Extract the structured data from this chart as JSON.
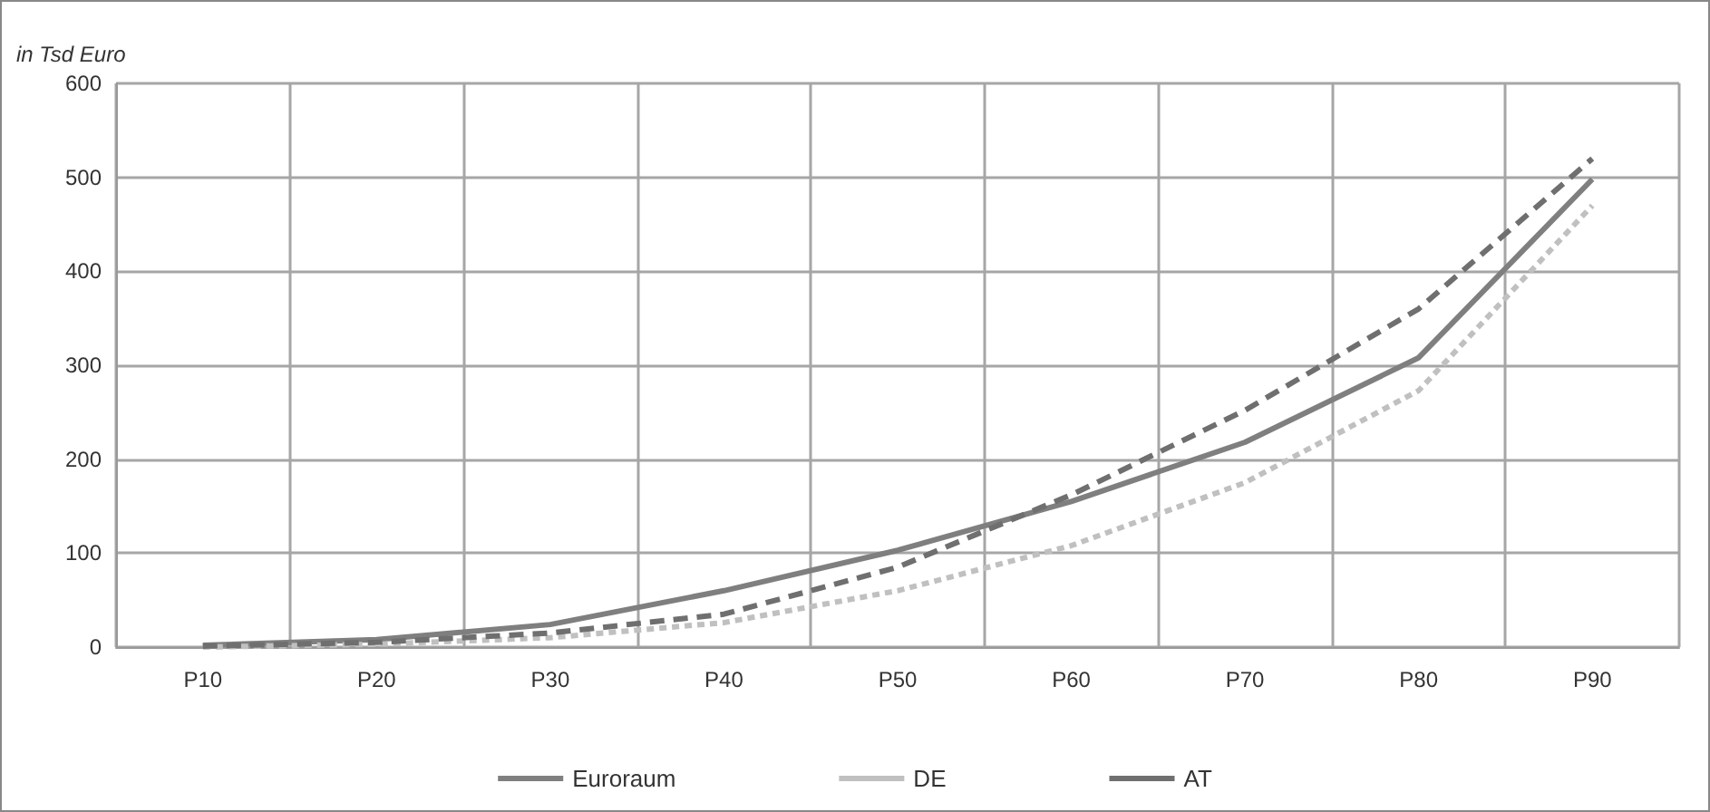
{
  "chart_data": {
    "type": "line",
    "ylabel": "in Tsd Euro",
    "categories": [
      "P10",
      "P20",
      "P30",
      "P40",
      "P50",
      "P60",
      "P70",
      "P80",
      "P90"
    ],
    "series": [
      {
        "name": "Euroraum",
        "color": "#7f7f7f",
        "line_style": "solid",
        "values": [
          2,
          8,
          24,
          60,
          103,
          155,
          218,
          308,
          498
        ]
      },
      {
        "name": "DE",
        "color": "#c0c0c0",
        "line_style": "dotted",
        "values": [
          0,
          3,
          10,
          26,
          60,
          108,
          175,
          273,
          470
        ]
      },
      {
        "name": "AT",
        "color": "#6f6f6f",
        "line_style": "dashed",
        "values": [
          1,
          5,
          15,
          35,
          85,
          162,
          252,
          360,
          520
        ]
      }
    ],
    "ylim": [
      0,
      600
    ],
    "yticks": [
      0,
      100,
      200,
      300,
      400,
      500,
      600
    ],
    "grid": true,
    "legend": "bottom",
    "marker": "none"
  }
}
